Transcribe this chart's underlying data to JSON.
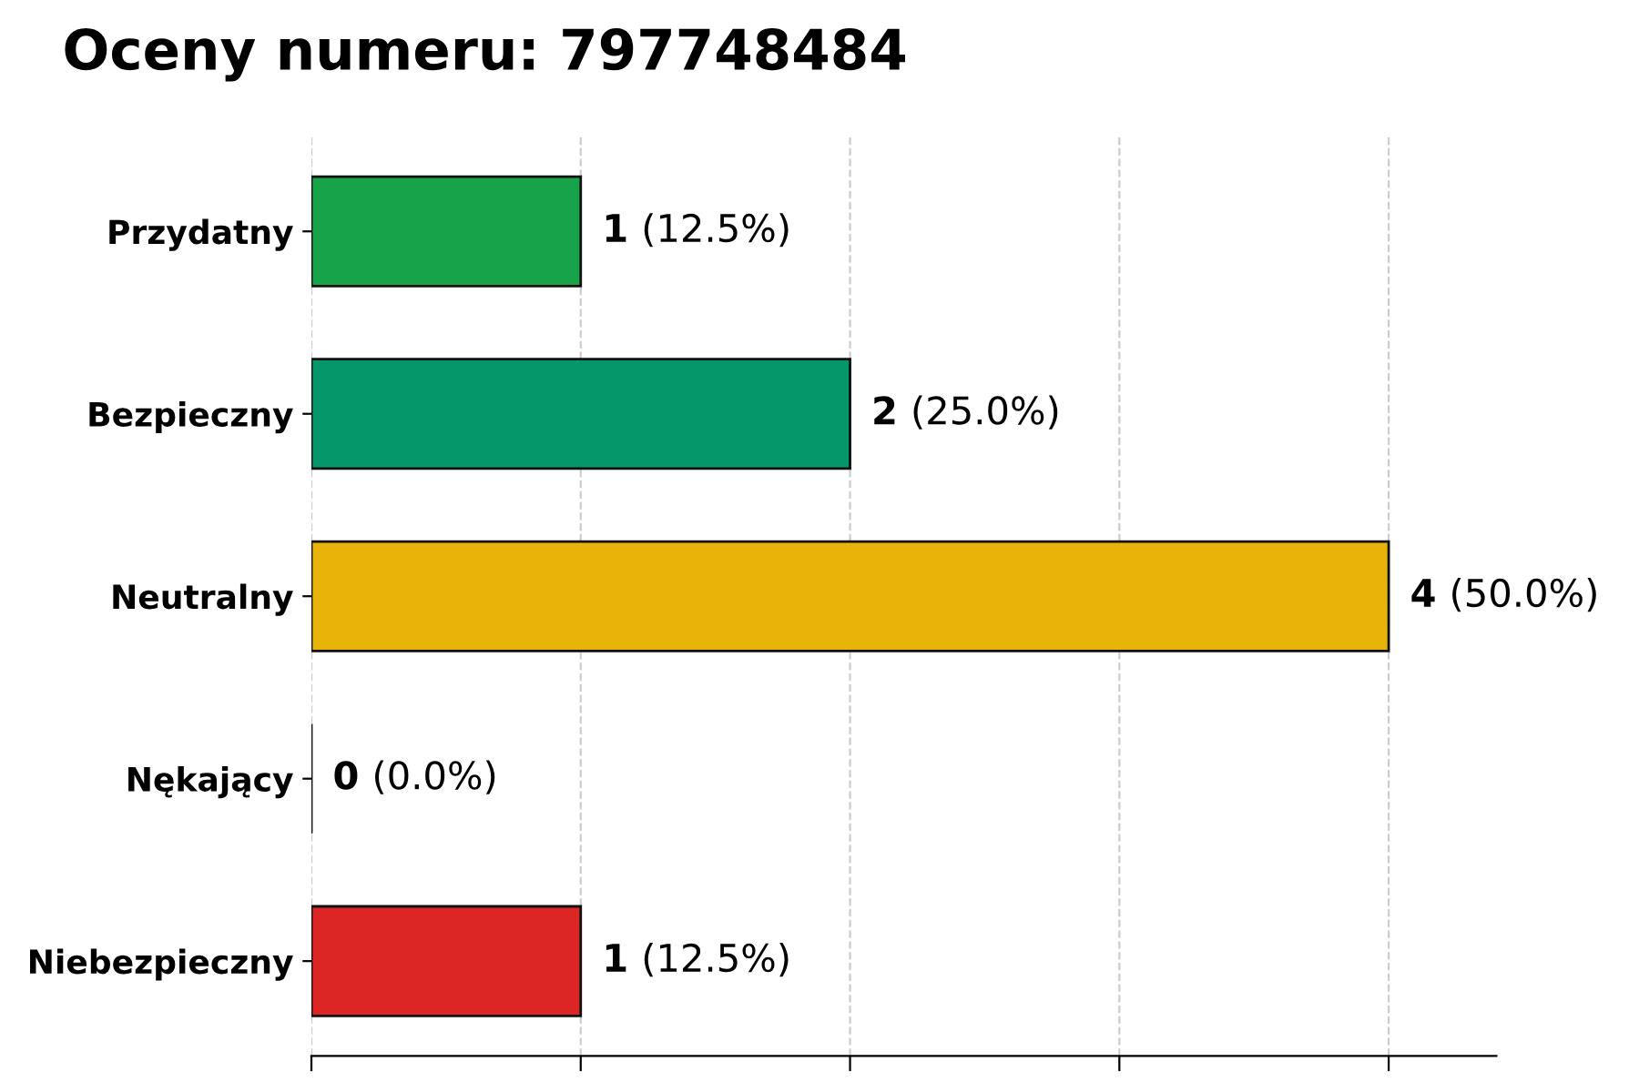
{
  "chart_data": {
    "type": "bar",
    "orientation": "horizontal",
    "title": "Oceny numeru: 797748484",
    "categories": [
      "Przydatny",
      "Bezpieczny",
      "Neutralny",
      "Nękający",
      "Niebezpieczny"
    ],
    "values": [
      1,
      2,
      4,
      0,
      1
    ],
    "colors": [
      "#16a34a",
      "#059669",
      "#e8b40a",
      "#111111",
      "#dc2626"
    ],
    "value_labels": [
      "1 (12.5%)",
      "2 (25.0%)",
      "4 (50.0%)",
      "0 (0.0%)",
      "1 (12.5%)"
    ],
    "xlim": [
      0,
      4.4
    ],
    "xticks": [
      {
        "value": 0,
        "label": null
      },
      {
        "value": 1,
        "label": null
      },
      {
        "value": 2,
        "label": null
      },
      {
        "value": 3,
        "label": null
      },
      {
        "value": 4,
        "label": null
      }
    ],
    "tick_labels": "y",
    "grid": "x",
    "legend": false
  }
}
